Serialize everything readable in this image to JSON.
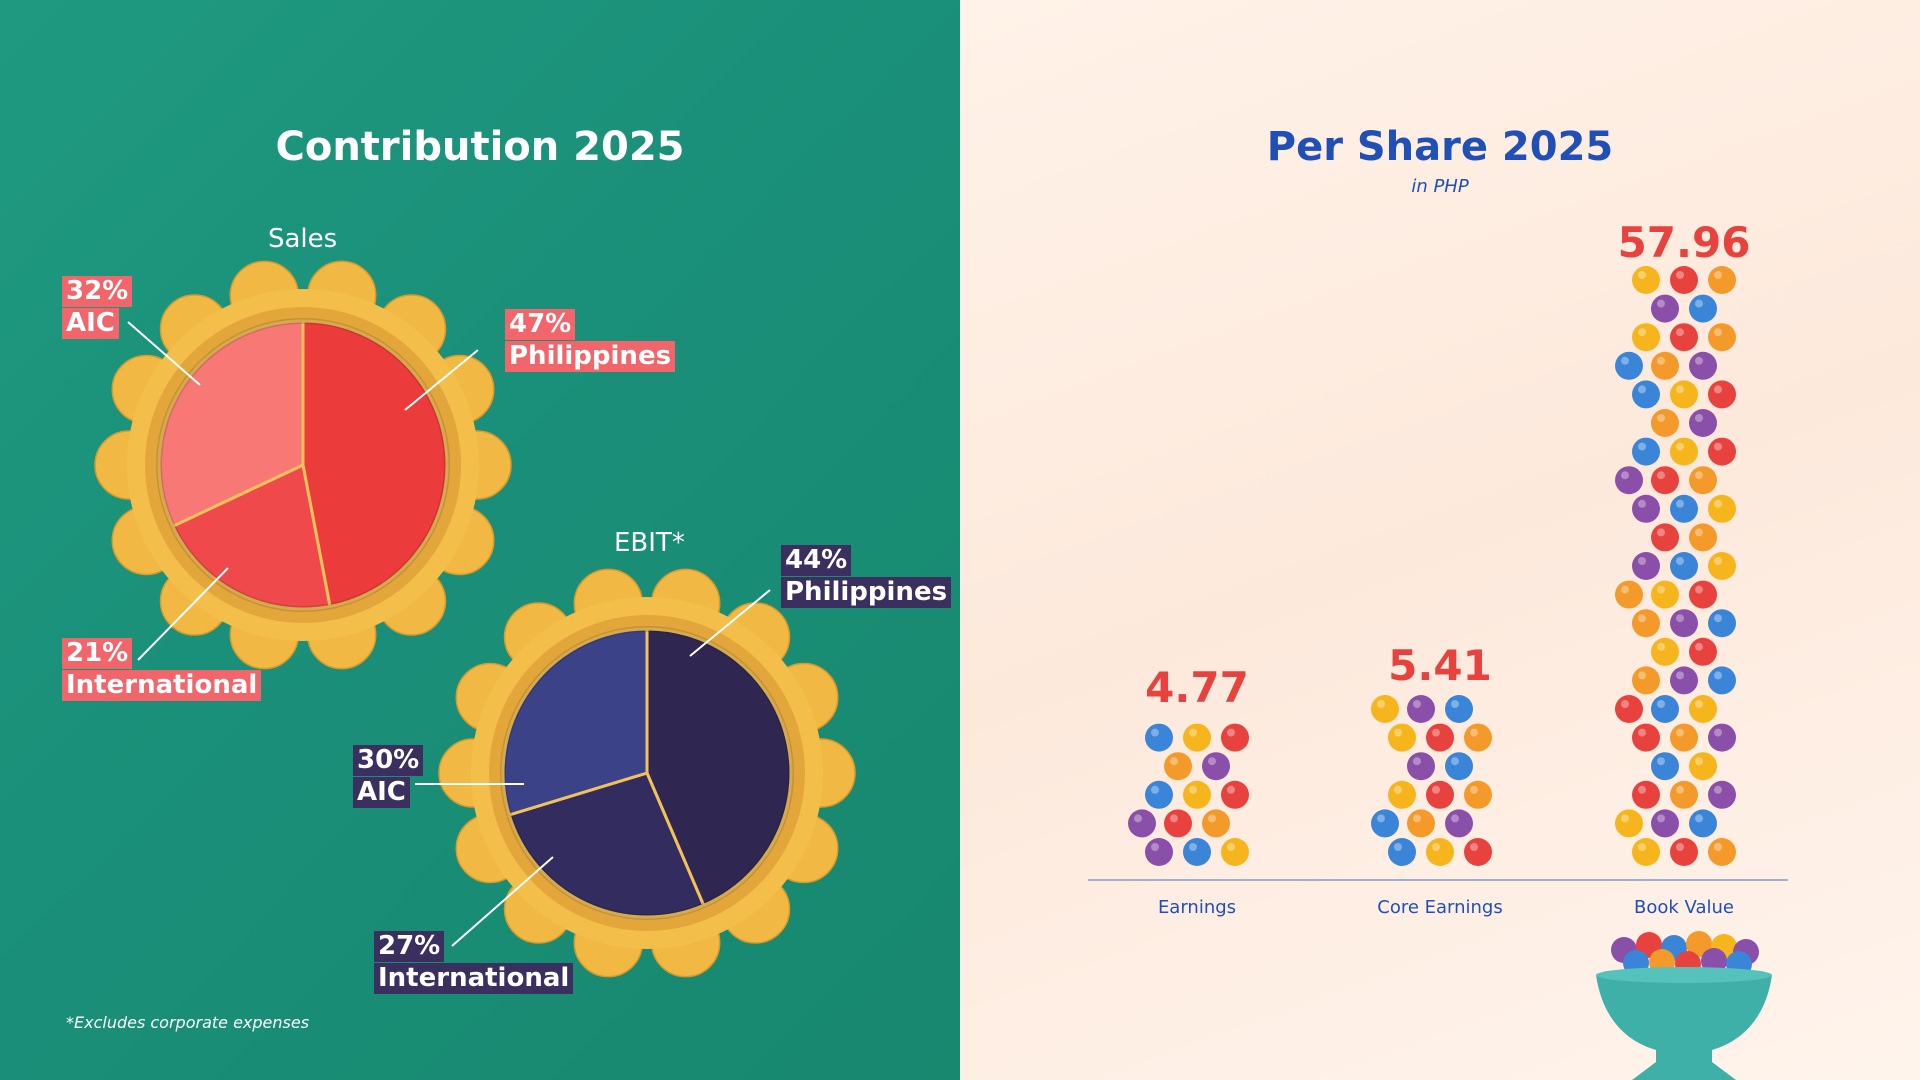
{
  "left": {
    "title": "Contribution 2025",
    "footnote": "*Excludes corporate expenses"
  },
  "right": {
    "title": "Per Share 2025",
    "subtitle": "in PHP"
  },
  "chart_data": [
    {
      "type": "pie",
      "title": "Sales",
      "slices": [
        {
          "pct": "47%",
          "label": "Philippines",
          "value": 47
        },
        {
          "pct": "21%",
          "label": "International",
          "value": 21
        },
        {
          "pct": "32%",
          "label": "AIC",
          "value": 32
        }
      ],
      "colors": [
        "#ec3b3b",
        "#f0494b",
        "#f87876"
      ]
    },
    {
      "type": "pie",
      "title": "EBIT*",
      "slices": [
        {
          "pct": "44%",
          "label": "Philippines",
          "value": 44
        },
        {
          "pct": "27%",
          "label": "International",
          "value": 27
        },
        {
          "pct": "30%",
          "label": "AIC",
          "value": 30
        }
      ],
      "colors": [
        "#2f2752",
        "#332c5f",
        "#3c4288"
      ]
    },
    {
      "type": "bar",
      "categories": [
        "Earnings",
        "Core Earnings",
        "Book Value"
      ],
      "values": [
        4.77,
        5.41,
        57.96
      ],
      "value_labels": [
        "4.77",
        "5.41",
        "57.96"
      ],
      "bead_colors": [
        "#8a4fa8",
        "#e8423f",
        "#3a85d8",
        "#f49a2a",
        "#f7b51d"
      ]
    }
  ]
}
